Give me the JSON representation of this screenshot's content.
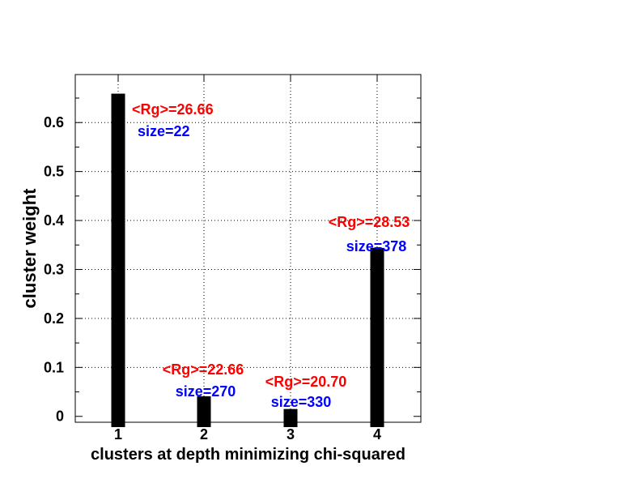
{
  "chart_data": {
    "type": "bar",
    "title": "",
    "xlabel": "clusters at depth minimizing chi-squared",
    "ylabel": "cluster weight",
    "categories": [
      "1",
      "2",
      "3",
      "4"
    ],
    "values": [
      0.659,
      0.041,
      0.015,
      0.344
    ],
    "ylim": [
      -0.012,
      0.698
    ],
    "yticks": [
      0,
      0.1,
      0.2,
      0.3,
      0.4,
      0.5,
      0.6
    ],
    "ytick_labels": [
      "0",
      "0.1",
      "0.2",
      "0.3",
      "0.4",
      "0.5",
      "0.6"
    ],
    "grid": true,
    "annotations": [
      {
        "rg": "<Rg>=26.66",
        "size": "size=22"
      },
      {
        "rg": "<Rg>=22.66",
        "size": "size=270"
      },
      {
        "rg": "<Rg>=20.70",
        "size": "size=330"
      },
      {
        "rg": "<Rg>=28.53",
        "size": "size=378"
      }
    ],
    "colors": {
      "bar": "#000000",
      "rg": "#ff0000",
      "size": "#0000ff",
      "grid": "#000000"
    }
  }
}
